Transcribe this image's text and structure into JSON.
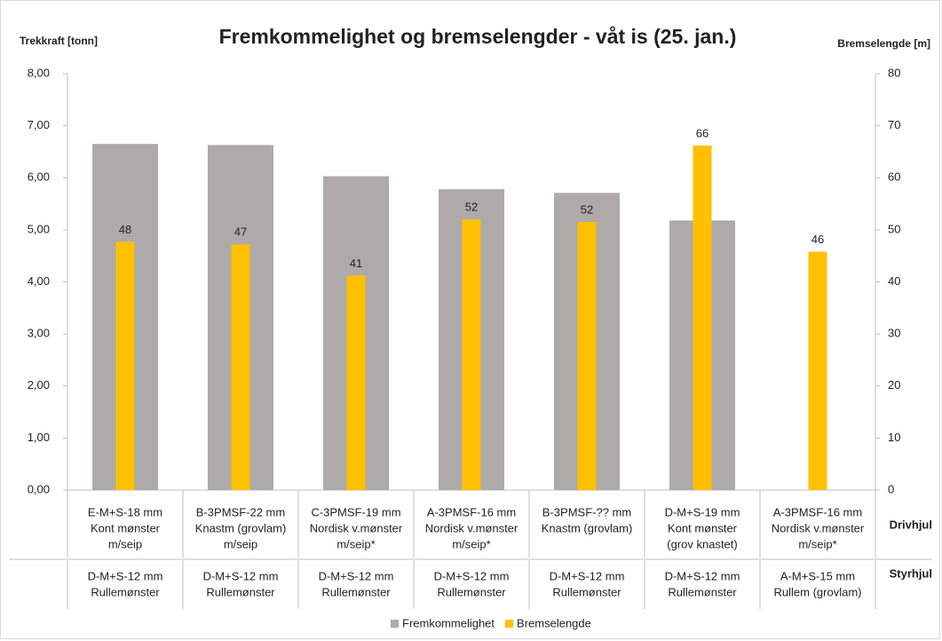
{
  "chart_data": {
    "type": "bar",
    "title": "Fremkommelighet og bremselengder - våt is (25. jan.)",
    "y_label": "Trekkraft [tonn]",
    "y2_label": "Bremselengde [m]",
    "categories": [
      [
        "E-M+S-18 mm",
        "Kont mønster",
        "m/seip"
      ],
      [
        "B-3PMSF-22 mm",
        "Knastm (grovlam)",
        "m/seip"
      ],
      [
        "C-3PMSF-19 mm",
        "Nordisk v.mønster",
        "m/seip*"
      ],
      [
        "A-3PMSF-16 mm",
        "Nordisk v.mønster",
        "m/seip*"
      ],
      [
        "B-3PMSF-?? mm",
        "Knastm (grovlam)"
      ],
      [
        "D-M+S-19 mm",
        "Kont mønster",
        "(grov knastet)"
      ],
      [
        "A-3PMSF-16 mm",
        "Nordisk v.mønster",
        "m/seip*"
      ]
    ],
    "categories_level_name": "Drivhjul",
    "categories_2": [
      [
        "D-M+S-12 mm",
        "Rullemønster"
      ],
      [
        "D-M+S-12 mm",
        "Rullemønster"
      ],
      [
        "D-M+S-12 mm",
        "Rullemønster"
      ],
      [
        "D-M+S-12 mm",
        "Rullemønster"
      ],
      [
        "D-M+S-12 mm",
        "Rullemønster"
      ],
      [
        "D-M+S-12 mm",
        "Rullemønster"
      ],
      [
        "A-M+S-15 mm",
        "Rullem (grovlam)"
      ]
    ],
    "categories_2_level_name": "Styrhjul",
    "series": [
      {
        "name": "Fremkommelighet",
        "color": "#aeaaaa",
        "values": [
          6.65,
          6.63,
          6.03,
          5.78,
          5.71,
          5.18,
          null
        ]
      },
      {
        "name": "Bremselengde",
        "color": "#ffc000",
        "axis": "y2",
        "values": [
          47.7,
          47.2,
          41.2,
          52.0,
          51.5,
          66.2,
          45.8
        ],
        "value_labels": [
          "48",
          "47",
          "41",
          "52",
          "52",
          "66",
          "46"
        ]
      }
    ],
    "ylim": [
      0,
      8
    ],
    "yticks": [
      {
        "value": 0,
        "label": "0,00"
      },
      {
        "value": 1,
        "label": "1,00"
      },
      {
        "value": 2,
        "label": "2,00"
      },
      {
        "value": 3,
        "label": "3,00"
      },
      {
        "value": 4,
        "label": "4,00"
      },
      {
        "value": 5,
        "label": "5,00"
      },
      {
        "value": 6,
        "label": "6,00"
      },
      {
        "value": 7,
        "label": "7,00"
      },
      {
        "value": 8,
        "label": "8,00"
      }
    ],
    "y2lim": [
      0,
      80
    ],
    "y2ticks": [
      0,
      10,
      20,
      30,
      40,
      50,
      60,
      70,
      80
    ],
    "legend": "bottom"
  }
}
